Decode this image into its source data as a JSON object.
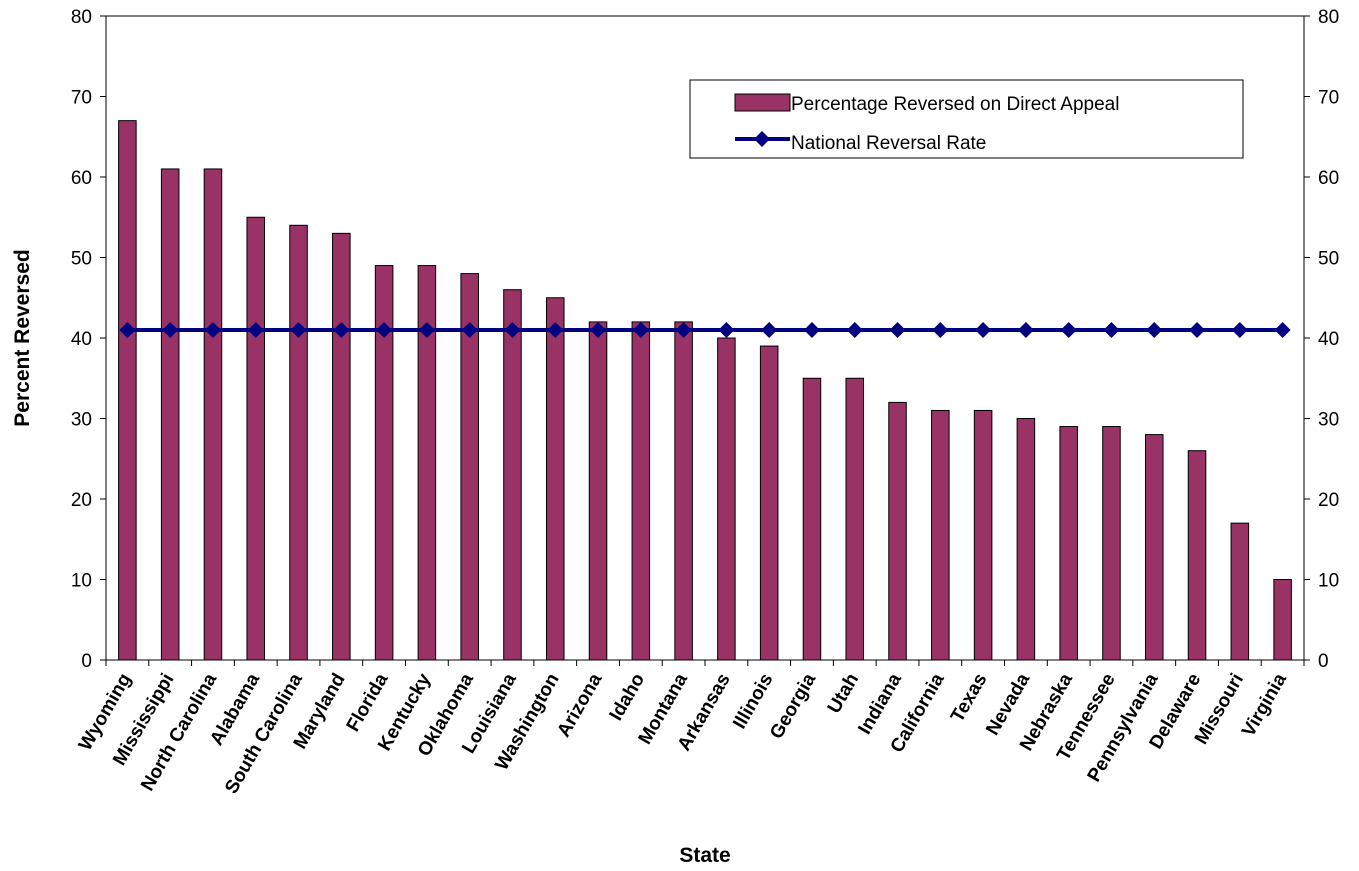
{
  "chart_data": {
    "type": "bar",
    "title": "",
    "xlabel": "State",
    "ylabel": "Percent Reversed",
    "ylim": [
      0,
      80
    ],
    "yticks": [
      0,
      10,
      20,
      30,
      40,
      50,
      60,
      70,
      80
    ],
    "secondary_yaxis": true,
    "grid": false,
    "legend_position": "top-right",
    "categories": [
      "Wyoming",
      "Mississippi",
      "North Carolina",
      "Alabama",
      "South Carolina",
      "Maryland",
      "Florida",
      "Kentucky",
      "Oklahoma",
      "Louisiana",
      "Washington",
      "Arizona",
      "Idaho",
      "Montana",
      "Arkansas",
      "Illinois",
      "Georgia",
      "Utah",
      "Indiana",
      "California",
      "Texas",
      "Nevada",
      "Nebraska",
      "Tennessee",
      "Pennsylvania",
      "Delaware",
      "Missouri",
      "Virginia"
    ],
    "series": [
      {
        "name": "Percentage Reversed on Direct Appeal",
        "type": "bar",
        "color": "#993366",
        "values": [
          67,
          61,
          61,
          55,
          54,
          53,
          49,
          49,
          48,
          46,
          45,
          42,
          42,
          42,
          40,
          39,
          35,
          35,
          32,
          31,
          31,
          30,
          29,
          29,
          28,
          26,
          17,
          10
        ]
      },
      {
        "name": "National Reversal Rate",
        "type": "line",
        "color": "#000080",
        "values": [
          41,
          41,
          41,
          41,
          41,
          41,
          41,
          41,
          41,
          41,
          41,
          41,
          41,
          41,
          41,
          41,
          41,
          41,
          41,
          41,
          41,
          41,
          41,
          41,
          41,
          41,
          41,
          41
        ]
      }
    ]
  }
}
